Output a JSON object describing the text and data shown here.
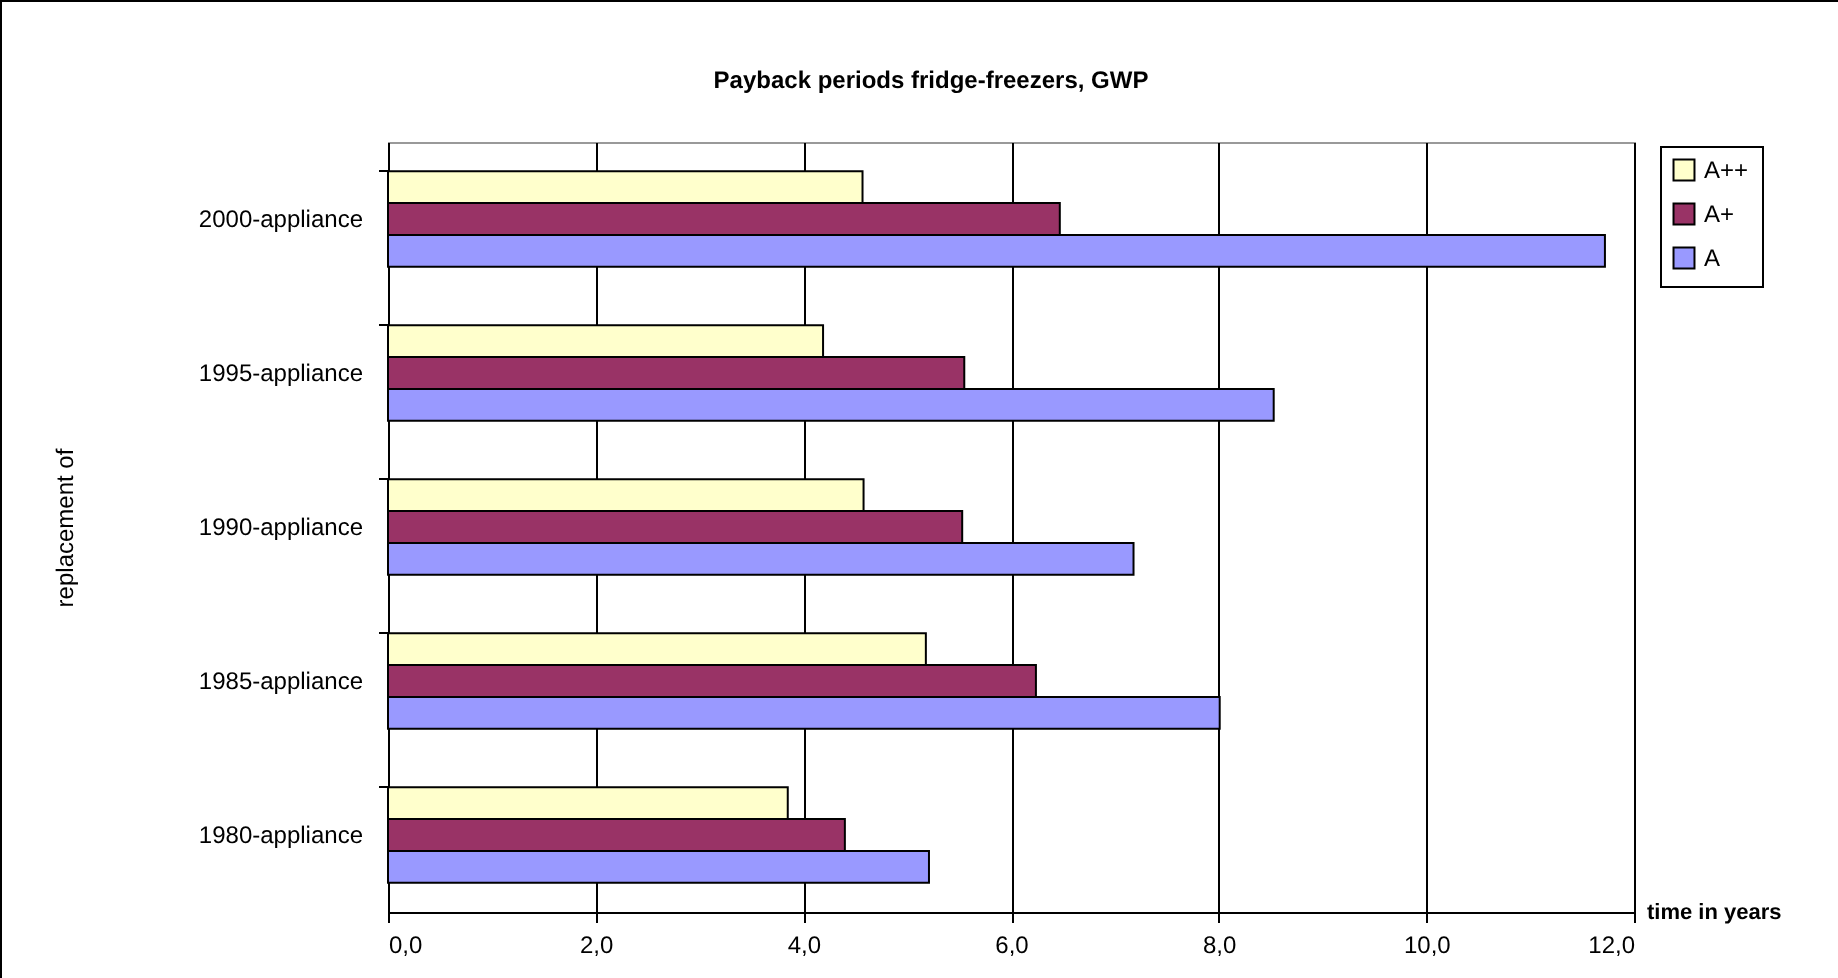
{
  "chart_data": {
    "type": "bar",
    "orientation": "horizontal",
    "title": "Payback periods fridge-freezers, GWP",
    "xlabel": "time in years",
    "ylabel": "replacement of",
    "categories": [
      "2000-appliance",
      "1995-appliance",
      "1990-appliance",
      "1985-appliance",
      "1980-appliance"
    ],
    "series": [
      {
        "name": "A++",
        "color": "#ffffcc",
        "values": [
          4.57,
          4.19,
          4.58,
          5.18,
          3.85
        ]
      },
      {
        "name": "A+",
        "color": "#993366",
        "values": [
          6.47,
          5.55,
          5.53,
          6.24,
          4.4
        ]
      },
      {
        "name": "A",
        "color": "#9999ff",
        "values": [
          11.72,
          8.53,
          7.18,
          8.01,
          5.21
        ]
      }
    ],
    "xlim": [
      0,
      12
    ],
    "xticks": [
      {
        "value": 0,
        "label": "0,0"
      },
      {
        "value": 2,
        "label": "2,0"
      },
      {
        "value": 4,
        "label": "4,0"
      },
      {
        "value": 6,
        "label": "6,0"
      },
      {
        "value": 8,
        "label": "8,0"
      },
      {
        "value": 10,
        "label": "10,0"
      },
      {
        "value": 12,
        "label": "12,0"
      }
    ],
    "grid": "x",
    "legend": "top right"
  }
}
